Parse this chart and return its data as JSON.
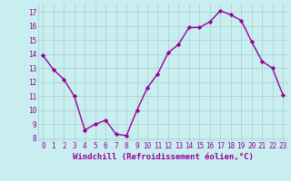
{
  "x": [
    0,
    1,
    2,
    3,
    4,
    5,
    6,
    7,
    8,
    9,
    10,
    11,
    12,
    13,
    14,
    15,
    16,
    17,
    18,
    19,
    20,
    21,
    22,
    23
  ],
  "y": [
    13.9,
    12.9,
    12.2,
    11.0,
    8.6,
    9.0,
    9.3,
    8.3,
    8.2,
    10.0,
    11.6,
    12.6,
    14.1,
    14.7,
    15.9,
    15.9,
    16.3,
    17.1,
    16.8,
    16.4,
    14.9,
    13.5,
    13.0,
    11.1
  ],
  "line_color": "#990099",
  "marker": "D",
  "markersize": 2.2,
  "linewidth": 1.0,
  "xlabel": "Windchill (Refroidissement éolien,°C)",
  "xlabel_fontsize": 6.5,
  "xlim": [
    -0.5,
    23.5
  ],
  "ylim": [
    7.8,
    17.6
  ],
  "yticks": [
    8,
    9,
    10,
    11,
    12,
    13,
    14,
    15,
    16,
    17
  ],
  "xticks": [
    0,
    1,
    2,
    3,
    4,
    5,
    6,
    7,
    8,
    9,
    10,
    11,
    12,
    13,
    14,
    15,
    16,
    17,
    18,
    19,
    20,
    21,
    22,
    23
  ],
  "background_color": "#c8eef0",
  "grid_color": "#aacccc",
  "tick_color": "#990099",
  "tick_fontsize": 5.5,
  "xlabel_color": "#990099",
  "separator_color": "#7700aa"
}
